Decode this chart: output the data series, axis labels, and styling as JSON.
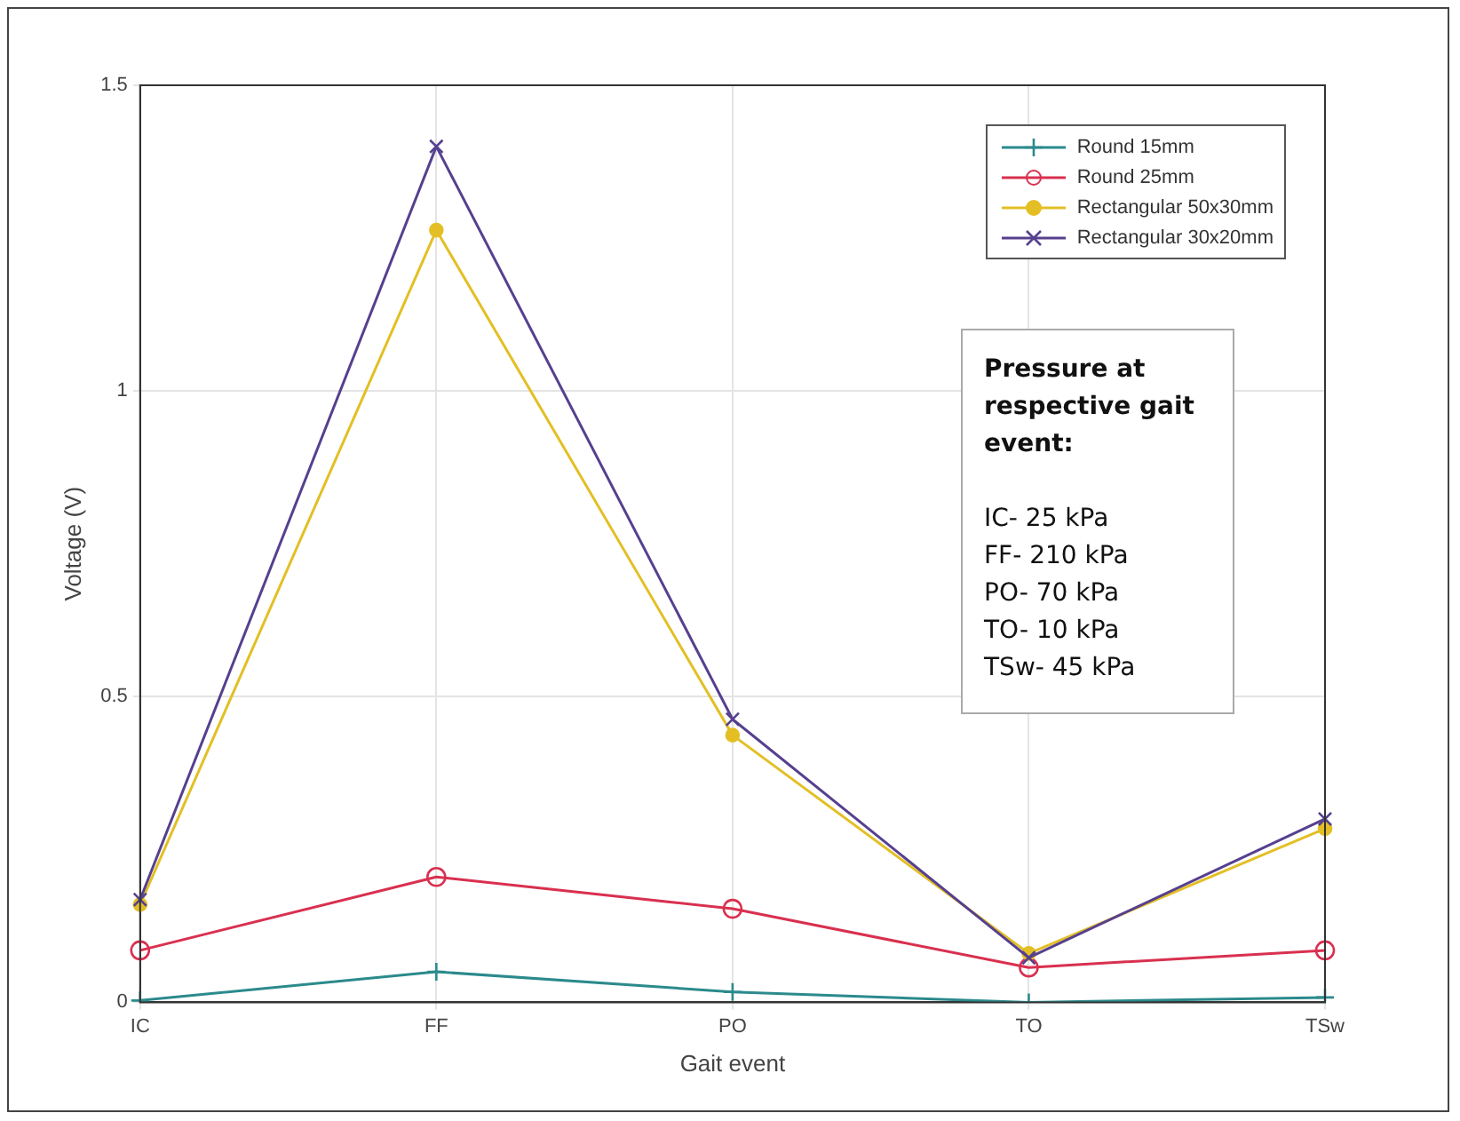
{
  "chart_data": {
    "type": "line",
    "xlabel": "Gait event",
    "ylabel": "Voltage (V)",
    "categories": [
      "IC",
      "FF",
      "PO",
      "TO",
      "TSw"
    ],
    "series": [
      {
        "name": "Round 15mm",
        "color": "#2b8a8c",
        "marker": "cross",
        "values": [
          0.003,
          0.05,
          0.017,
          0,
          0.008
        ]
      },
      {
        "name": "Round 25mm",
        "color": "#d9304f",
        "marker": "circle",
        "values": [
          0.085,
          0.205,
          0.153,
          0.057,
          0.085
        ]
      },
      {
        "name": "Rectangular 50x30mm",
        "color": "#e3bf25",
        "marker": "circle",
        "values": [
          0.16,
          1.263,
          0.437,
          0.08,
          0.284
        ]
      },
      {
        "name": "Rectangular 30x20mm",
        "color": "#56408f",
        "marker": "cross",
        "values": [
          0.168,
          1.4,
          0.463,
          0.073,
          0.3
        ]
      }
    ],
    "ylim": [
      0,
      1.5
    ],
    "yticks": [
      0,
      0.5,
      1,
      1.5
    ],
    "grid": true,
    "legend": "top right",
    "line_style": "solid",
    "annotations": [
      "Pressure at respective gait event:",
      "IC- 25 kPa",
      "FF- 210 kPa",
      "PO- 70 kPa",
      "TO- 10 kPa",
      "TSw- 45 kPa"
    ]
  }
}
